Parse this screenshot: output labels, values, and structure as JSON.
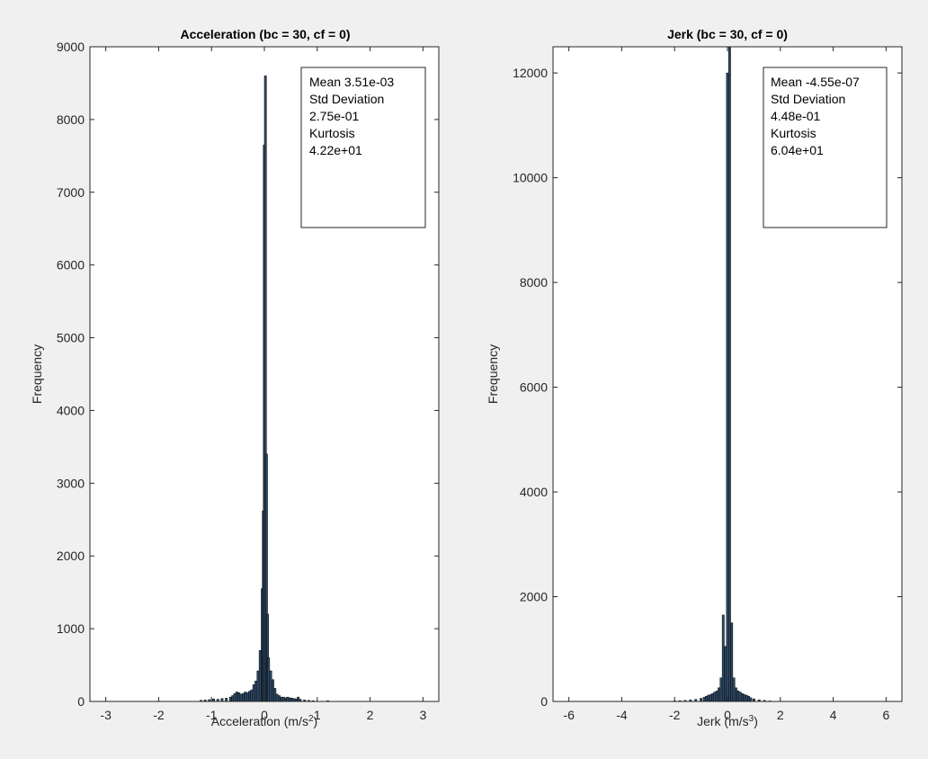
{
  "figure": {
    "background": "#f0f0f0",
    "bar_color": "#2f4a66",
    "bar_edge": "#000000"
  },
  "chart_data": [
    {
      "type": "bar",
      "title": "Acceleration (bc = 30, cf = 0)",
      "xlabel": "Acceleration (m/s",
      "xlabel_sup": "2",
      "xlabel_tail": ")",
      "ylabel": "Frequency",
      "xlim": [
        -3.3,
        3.3
      ],
      "ylim": [
        0,
        9000
      ],
      "xticks": [
        -3,
        -2,
        -1,
        0,
        1,
        2,
        3
      ],
      "yticks": [
        0,
        1000,
        2000,
        3000,
        4000,
        5000,
        6000,
        7000,
        8000,
        9000
      ],
      "bin_width": 0.04,
      "bins": [
        [
          -1.2,
          15
        ],
        [
          -1.12,
          20
        ],
        [
          -1.04,
          25
        ],
        [
          -0.96,
          35
        ],
        [
          -0.88,
          30
        ],
        [
          -0.8,
          40
        ],
        [
          -0.72,
          45
        ],
        [
          -0.64,
          60
        ],
        [
          -0.6,
          80
        ],
        [
          -0.56,
          110
        ],
        [
          -0.52,
          130
        ],
        [
          -0.48,
          120
        ],
        [
          -0.44,
          100
        ],
        [
          -0.4,
          110
        ],
        [
          -0.36,
          130
        ],
        [
          -0.32,
          120
        ],
        [
          -0.28,
          140
        ],
        [
          -0.24,
          160
        ],
        [
          -0.2,
          230
        ],
        [
          -0.16,
          280
        ],
        [
          -0.12,
          420
        ],
        [
          -0.08,
          700
        ],
        [
          -0.04,
          1550
        ],
        [
          -0.02,
          2620
        ],
        [
          0.0,
          7650
        ],
        [
          0.02,
          8600
        ],
        [
          0.04,
          3400
        ],
        [
          0.06,
          1200
        ],
        [
          0.08,
          600
        ],
        [
          0.12,
          420
        ],
        [
          0.16,
          300
        ],
        [
          0.2,
          180
        ],
        [
          0.24,
          100
        ],
        [
          0.28,
          80
        ],
        [
          0.32,
          60
        ],
        [
          0.36,
          60
        ],
        [
          0.4,
          50
        ],
        [
          0.44,
          60
        ],
        [
          0.48,
          50
        ],
        [
          0.52,
          45
        ],
        [
          0.56,
          40
        ],
        [
          0.6,
          35
        ],
        [
          0.64,
          60
        ],
        [
          0.68,
          30
        ],
        [
          0.76,
          20
        ],
        [
          0.84,
          15
        ],
        [
          0.92,
          10
        ],
        [
          1.2,
          10
        ]
      ],
      "stats": {
        "mean_label": "Mean 3.51e-03",
        "std_label": "Std Deviation",
        "std_value": "2.75e-01",
        "kurt_label": "Kurtosis",
        "kurt_value": "4.22e+01"
      }
    },
    {
      "type": "bar",
      "title": "Jerk (bc = 30, cf = 0)",
      "xlabel": "Jerk (m/s",
      "xlabel_sup": "3",
      "xlabel_tail": ")",
      "ylabel": "Frequency",
      "xlim": [
        -6.6,
        6.6
      ],
      "ylim": [
        0,
        12500
      ],
      "xticks": [
        -6,
        -4,
        -2,
        0,
        2,
        4,
        6
      ],
      "yticks": [
        0,
        2000,
        4000,
        6000,
        8000,
        10000,
        12000
      ],
      "bin_width": 0.08,
      "bins": [
        [
          -2.0,
          10
        ],
        [
          -1.8,
          15
        ],
        [
          -1.6,
          20
        ],
        [
          -1.4,
          30
        ],
        [
          -1.2,
          40
        ],
        [
          -1.0,
          60
        ],
        [
          -0.88,
          80
        ],
        [
          -0.8,
          100
        ],
        [
          -0.72,
          120
        ],
        [
          -0.64,
          130
        ],
        [
          -0.56,
          150
        ],
        [
          -0.48,
          180
        ],
        [
          -0.4,
          200
        ],
        [
          -0.32,
          260
        ],
        [
          -0.24,
          450
        ],
        [
          -0.16,
          1650
        ],
        [
          -0.08,
          1050
        ],
        [
          0.0,
          12000
        ],
        [
          0.08,
          12500
        ],
        [
          0.16,
          1500
        ],
        [
          0.24,
          450
        ],
        [
          0.32,
          260
        ],
        [
          0.4,
          200
        ],
        [
          0.48,
          180
        ],
        [
          0.56,
          150
        ],
        [
          0.64,
          130
        ],
        [
          0.72,
          120
        ],
        [
          0.8,
          100
        ],
        [
          0.88,
          70
        ],
        [
          1.0,
          50
        ],
        [
          1.2,
          30
        ],
        [
          1.4,
          20
        ],
        [
          1.6,
          10
        ]
      ],
      "stats": {
        "mean_label": "Mean -4.55e-07",
        "std_label": "Std Deviation",
        "std_value": "4.48e-01",
        "kurt_label": "Kurtosis",
        "kurt_value": "6.04e+01"
      }
    }
  ]
}
